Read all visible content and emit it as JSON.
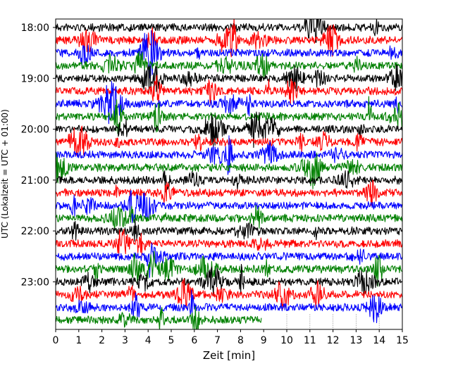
{
  "chart_data": {
    "type": "line",
    "subtype": "helicorder",
    "title": "",
    "xlabel": "Zeit  [min]",
    "ylabel": "UTC (Lokalzeit = UTC + 01:00)",
    "xlim": [
      0,
      15
    ],
    "x_ticks": [
      "0",
      "1",
      "2",
      "3",
      "4",
      "5",
      "6",
      "7",
      "8",
      "9",
      "10",
      "11",
      "12",
      "13",
      "14",
      "15"
    ],
    "y_ticks": [
      "18:00",
      "19:00",
      "20:00",
      "21:00",
      "22:00",
      "23:00"
    ],
    "trace_start_time": "18:00",
    "trace_length_min": 15,
    "trace_count": 24,
    "last_trace_end_min": 8.9,
    "gap_marker_minutes": [
      10,
      11,
      12,
      13,
      14
    ],
    "series_colors": [
      "#000000",
      "#ff0000",
      "#0000ff",
      "#008000"
    ],
    "grid": false,
    "legend": "none"
  }
}
